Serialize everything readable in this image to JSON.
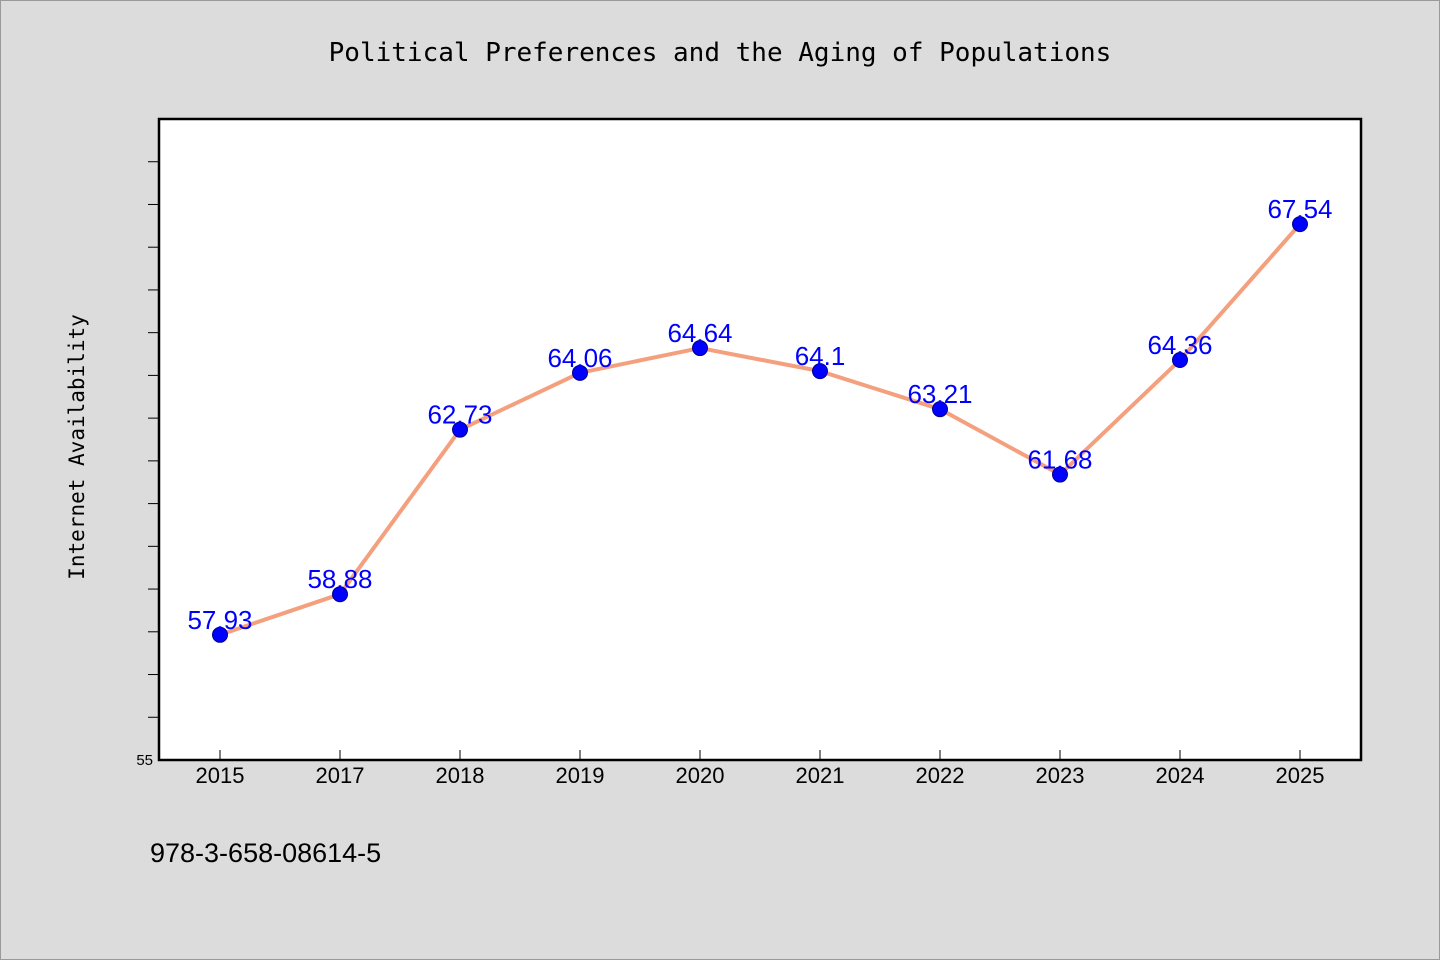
{
  "chart_data": {
    "type": "line",
    "title": "Political Preferences and the Aging of Populations",
    "xlabel": "",
    "ylabel": "Internet Availability",
    "categories": [
      "2015",
      "2017",
      "2018",
      "2019",
      "2020",
      "2021",
      "2022",
      "2023",
      "2024",
      "2025"
    ],
    "values": [
      57.93,
      58.88,
      62.73,
      64.06,
      64.64,
      64.1,
      63.21,
      61.68,
      64.36,
      67.54
    ],
    "data_labels": [
      "57.93",
      "58.88",
      "62.73",
      "64.06",
      "64.64",
      "64.1",
      "63.21",
      "61.68",
      "64.36",
      "67.54"
    ],
    "ylim": [
      55,
      70
    ],
    "y_tick_labels": [
      "55"
    ],
    "grid": false,
    "legend": "none",
    "colors": {
      "line": "#f4a07e",
      "marker": "#0000ff",
      "data_label": "#0000ff",
      "background": "#dcdcdc",
      "plot_area": "#ffffff"
    }
  },
  "footer": {
    "isbn": "978-3-658-08614-5"
  }
}
